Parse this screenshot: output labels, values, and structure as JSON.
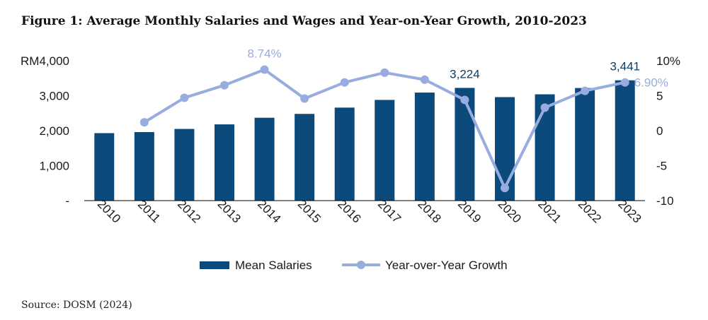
{
  "title": "Figure 1: Average Monthly Salaries and Wages and Year-on-Year Growth, 2010-2023",
  "source": "Source: DOSM (2024)",
  "colors": {
    "bar": "#0b4a7a",
    "line": "#98acdf",
    "bar_label": "#0b3d66",
    "line_label": "#98acdf"
  },
  "chart_data": {
    "type": "bar",
    "categories": [
      "2010",
      "2011",
      "2012",
      "2013",
      "2014",
      "2015",
      "2016",
      "2017",
      "2018",
      "2019",
      "2020",
      "2021",
      "2022",
      "2023"
    ],
    "series": [
      {
        "name": "Mean Salaries",
        "type": "bar",
        "axis": "left",
        "values": [
          1930,
          1960,
          2050,
          2180,
          2370,
          2480,
          2660,
          2880,
          3090,
          3224,
          2960,
          3040,
          3220,
          3441
        ]
      },
      {
        "name": "Year-over-Year Growth",
        "type": "line",
        "axis": "right",
        "values": [
          null,
          1.2,
          4.7,
          6.5,
          8.74,
          4.6,
          6.9,
          8.3,
          7.3,
          4.4,
          -8.2,
          3.3,
          5.7,
          6.9
        ]
      }
    ],
    "left_axis": {
      "ylim": [
        0,
        4000
      ],
      "ticks": [
        0,
        1000,
        2000,
        3000,
        4000
      ],
      "tick_labels": [
        "-",
        "1,000",
        "2,000",
        "3,000",
        "RM4,000"
      ]
    },
    "right_axis": {
      "ylim": [
        -10,
        10
      ],
      "ticks": [
        -10,
        -5,
        0,
        5,
        10
      ],
      "tick_labels": [
        "-10",
        "-5",
        "0",
        "5",
        "10%"
      ]
    },
    "annotations": [
      {
        "series": 0,
        "index": 9,
        "text": "3,224"
      },
      {
        "series": 0,
        "index": 13,
        "text": "3,441"
      },
      {
        "series": 1,
        "index": 4,
        "text": "8.74%"
      },
      {
        "series": 1,
        "index": 13,
        "text": "6.90%"
      }
    ],
    "legend": {
      "position": "bottom",
      "items": [
        "Mean Salaries",
        "Year-over-Year Growth"
      ]
    },
    "grid": false
  }
}
